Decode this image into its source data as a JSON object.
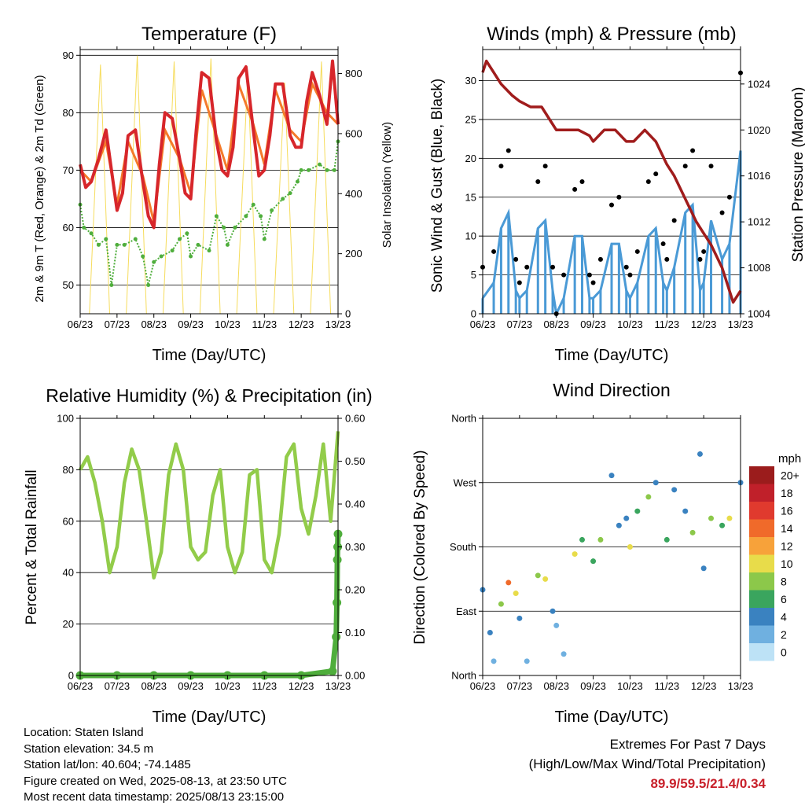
{
  "panels": {
    "temperature": {
      "title": "Temperature (F)",
      "xlabel": "Time (Day/UTC)",
      "ylabel_left": "2m & 9m T (Red, Orange) & 2m Td (Green)",
      "ylabel_right": "Solar Insolation (Yellow)"
    },
    "winds": {
      "title": "Winds (mph) & Pressure (mb)",
      "xlabel": "Time (Day/UTC)",
      "ylabel_left": "Sonic Wind & Gust (Blue, Black)",
      "ylabel_right": "Station Pressure (Maroon)"
    },
    "humidity": {
      "title": "Relative Humidity (%) & Precipitation (in)",
      "xlabel": "Time (Day/UTC)",
      "ylabel_left": "Percent & Total Rainfall"
    },
    "direction": {
      "title": "Wind Direction",
      "xlabel": "Time (Day/UTC)",
      "ylabel_left": "Direction (Colored By Speed)",
      "legend_title": "mph"
    }
  },
  "info": {
    "location": "Location: Staten Island",
    "elevation": "Station elevation: 34.5 m",
    "latlon": "Station lat/lon: 40.604; -74.1485",
    "created": "Figure created on Wed, 2025-08-13, at 23:50 UTC",
    "recent": "Most recent data timestamp: 2025/08/13 23:15:00"
  },
  "extremes": {
    "title": "Extremes For Past 7 Days",
    "subtitle": "(High/Low/Max Wind/Total Precipitation)",
    "values": "89.9/59.5/21.4/0.34"
  },
  "colors": {
    "temp_2m": "#d7262b",
    "temp_9m": "#f47a2a",
    "dewpoint": "#4fae3c",
    "solar": "#f6dc5c",
    "wind": "#4a9ad6",
    "gust": "#000000",
    "pressure": "#a01c1c",
    "rh": "#92cc4a",
    "precip": "#4fae3c"
  },
  "chart_data": [
    {
      "type": "line",
      "title": "Temperature (F)",
      "xlabel": "Time (Day/UTC)",
      "ylabel": "2m & 9m T (Red, Orange) & 2m Td (Green)",
      "y2label": "Solar Insolation (Yellow)",
      "x_ticks": [
        "06/23",
        "07/23",
        "08/23",
        "09/23",
        "10/23",
        "11/23",
        "12/23",
        "13/23"
      ],
      "xlim": [
        "2025-08-06 23:00",
        "2025-08-13 23:00"
      ],
      "ylim": [
        45,
        91
      ],
      "yticks": [
        50,
        60,
        70,
        80,
        90
      ],
      "y2lim": [
        0,
        880
      ],
      "y2ticks": [
        0,
        200,
        400,
        600,
        800
      ],
      "grid": true,
      "series": [
        {
          "name": "2m T",
          "axis": "left",
          "color": "#d7262b",
          "x": [
            0,
            0.15,
            0.3,
            0.5,
            0.7,
            0.85,
            1,
            1.15,
            1.3,
            1.5,
            1.7,
            1.85,
            2,
            2.15,
            2.3,
            2.5,
            2.7,
            2.85,
            3,
            3.15,
            3.3,
            3.5,
            3.7,
            3.85,
            4,
            4.15,
            4.3,
            4.5,
            4.7,
            4.85,
            5,
            5.15,
            5.3,
            5.5,
            5.7,
            5.85,
            6,
            6.15,
            6.3,
            6.5,
            6.7,
            6.85,
            7
          ],
          "values": [
            71,
            67,
            68,
            72,
            77,
            70,
            63,
            66,
            76,
            77,
            68,
            62,
            60,
            71,
            80,
            79,
            72,
            66,
            65,
            77,
            87,
            86,
            75,
            70,
            69,
            74,
            86,
            88,
            77,
            69,
            70,
            76,
            85,
            85,
            76,
            74,
            74,
            82,
            87,
            83,
            78,
            89,
            78
          ]
        },
        {
          "name": "9m T",
          "axis": "left",
          "color": "#f47a2a",
          "x": [
            0,
            0.3,
            0.7,
            1,
            1.3,
            1.7,
            2,
            2.3,
            2.7,
            3,
            3.3,
            3.7,
            4,
            4.3,
            4.7,
            5,
            5.3,
            5.7,
            6,
            6.3,
            6.7,
            7
          ],
          "values": [
            70,
            68,
            75,
            64,
            75,
            69,
            61,
            77,
            72,
            66,
            84,
            76,
            70,
            85,
            78,
            71,
            84,
            77,
            75,
            85,
            80,
            78
          ]
        },
        {
          "name": "2m Td",
          "axis": "left",
          "color": "#4fae3c",
          "x": [
            0,
            0.1,
            0.3,
            0.5,
            0.7,
            0.85,
            1,
            1.2,
            1.5,
            1.7,
            1.85,
            2,
            2.2,
            2.5,
            2.7,
            2.9,
            3,
            3.2,
            3.5,
            3.7,
            3.9,
            4,
            4.2,
            4.5,
            4.7,
            4.9,
            5,
            5.2,
            5.5,
            5.7,
            5.9,
            6,
            6.2,
            6.5,
            6.7,
            6.9,
            7
          ],
          "values": [
            64,
            60,
            59,
            57,
            58,
            50,
            57,
            57,
            58,
            55,
            50,
            54,
            55,
            56,
            58,
            59,
            55,
            57,
            56,
            62,
            60,
            57,
            60,
            62,
            64,
            62,
            58,
            63,
            65,
            66,
            68,
            70,
            70,
            71,
            70,
            70,
            75
          ]
        },
        {
          "name": "Solar Insolation",
          "axis": "right",
          "color": "#f6dc5c",
          "x": [
            0.1,
            0.25,
            0.55,
            0.8,
            1.1,
            1.25,
            1.55,
            1.8,
            2.1,
            2.25,
            2.55,
            2.8,
            3.1,
            3.25,
            3.55,
            3.8,
            4.1,
            4.25,
            4.55,
            4.8,
            5.1,
            5.25,
            5.55,
            5.8,
            6.1,
            6.25,
            6.55,
            6.8
          ],
          "values": [
            0,
            0,
            830,
            0,
            0,
            0,
            860,
            0,
            0,
            0,
            840,
            0,
            0,
            0,
            850,
            0,
            0,
            0,
            800,
            0,
            0,
            0,
            770,
            0,
            0,
            0,
            840,
            0
          ]
        }
      ]
    },
    {
      "type": "scatter",
      "title": "Winds (mph) & Pressure (mb)",
      "xlabel": "Time (Day/UTC)",
      "ylabel": "Sonic Wind & Gust (Blue, Black)",
      "y2label": "Station Pressure (Maroon)",
      "x_ticks": [
        "06/23",
        "07/23",
        "08/23",
        "09/23",
        "10/23",
        "11/23",
        "12/23",
        "13/23"
      ],
      "ylim": [
        0,
        34
      ],
      "yticks": [
        0,
        5,
        10,
        15,
        20,
        25,
        30
      ],
      "y2lim": [
        1004,
        1027
      ],
      "y2ticks": [
        1004,
        1008,
        1012,
        1016,
        1020,
        1024
      ],
      "grid": true,
      "series": [
        {
          "name": "Gust",
          "color": "#000000",
          "x": [
            0,
            0.3,
            0.5,
            0.7,
            0.9,
            1,
            1.2,
            1.5,
            1.7,
            1.9,
            2,
            2.2,
            2.5,
            2.7,
            2.9,
            3,
            3.2,
            3.5,
            3.7,
            3.9,
            4,
            4.2,
            4.5,
            4.7,
            4.9,
            5,
            5.2,
            5.5,
            5.7,
            5.9,
            6,
            6.2,
            6.5,
            6.7,
            7
          ],
          "values": [
            6,
            8,
            19,
            21,
            7,
            4,
            6,
            17,
            19,
            6,
            0,
            5,
            16,
            17,
            5,
            4,
            7,
            14,
            15,
            6,
            5,
            8,
            17,
            18,
            9,
            7,
            12,
            19,
            21,
            7,
            8,
            19,
            13,
            15,
            31
          ]
        },
        {
          "name": "Wind",
          "color": "#4a9ad6",
          "x": [
            0,
            0.3,
            0.5,
            0.7,
            0.9,
            1,
            1.2,
            1.5,
            1.7,
            1.9,
            2,
            2.2,
            2.5,
            2.7,
            2.9,
            3,
            3.2,
            3.5,
            3.7,
            3.9,
            4,
            4.2,
            4.5,
            4.7,
            4.9,
            5,
            5.2,
            5.5,
            5.7,
            5.9,
            6,
            6.2,
            6.5,
            6.7,
            7
          ],
          "values": [
            2,
            4,
            11,
            13,
            3,
            2,
            3,
            11,
            12,
            3,
            0,
            2,
            10,
            10,
            2,
            2,
            3,
            9,
            9,
            3,
            2,
            4,
            10,
            11,
            4,
            3,
            6,
            13,
            14,
            3,
            4,
            12,
            7,
            9,
            21
          ]
        },
        {
          "name": "Pressure",
          "color": "#a01c1c",
          "axis": "right",
          "x": [
            0,
            0.1,
            0.3,
            0.5,
            0.8,
            1,
            1.3,
            1.6,
            1.9,
            2,
            2.3,
            2.6,
            2.9,
            3,
            3.3,
            3.6,
            3.9,
            4.1,
            4.4,
            4.7,
            5,
            5.2,
            5.5,
            5.8,
            6,
            6.2,
            6.5,
            6.8,
            7
          ],
          "values": [
            1025,
            1026,
            1025,
            1024,
            1023,
            1022.5,
            1022,
            1022,
            1020.5,
            1020,
            1020,
            1020,
            1019.5,
            1019,
            1020,
            1020,
            1019,
            1019,
            1020,
            1019,
            1017,
            1016,
            1014,
            1012,
            1011,
            1010,
            1008,
            1005,
            1006
          ]
        }
      ]
    },
    {
      "type": "line",
      "title": "Relative Humidity (%) & Precipitation (in)",
      "xlabel": "Time (Day/UTC)",
      "ylabel": "Percent & Total Rainfall",
      "x_ticks": [
        "06/23",
        "07/23",
        "08/23",
        "09/23",
        "10/23",
        "11/23",
        "12/23",
        "13/23"
      ],
      "ylim": [
        0,
        100
      ],
      "yticks": [
        0,
        20,
        40,
        60,
        80,
        100
      ],
      "y2lim": [
        0,
        0.6
      ],
      "y2ticks": [
        "0.00",
        "0.10",
        "0.20",
        "0.30",
        "0.40",
        "0.50",
        "0.60"
      ],
      "grid": true,
      "series": [
        {
          "name": "RH",
          "color": "#92cc4a",
          "x": [
            0,
            0.2,
            0.4,
            0.6,
            0.8,
            1,
            1.2,
            1.4,
            1.6,
            1.8,
            2,
            2.2,
            2.4,
            2.6,
            2.8,
            3,
            3.2,
            3.4,
            3.6,
            3.8,
            4,
            4.2,
            4.4,
            4.6,
            4.8,
            5,
            5.2,
            5.4,
            5.6,
            5.8,
            6,
            6.2,
            6.4,
            6.6,
            6.8,
            7
          ],
          "values": [
            80,
            85,
            75,
            60,
            40,
            50,
            75,
            88,
            80,
            60,
            38,
            48,
            78,
            90,
            80,
            50,
            45,
            48,
            70,
            80,
            50,
            40,
            48,
            78,
            80,
            45,
            40,
            55,
            85,
            90,
            65,
            55,
            70,
            90,
            60,
            95
          ]
        },
        {
          "name": "Precipitation",
          "color": "#4fae3c",
          "axis": "right",
          "x": [
            0,
            1,
            2,
            3,
            4,
            5,
            6,
            6.85,
            6.95,
            6.97,
            6.98,
            6.99,
            7
          ],
          "values": [
            0,
            0,
            0,
            0,
            0,
            0,
            0,
            0.01,
            0.09,
            0.17,
            0.27,
            0.3,
            0.33
          ]
        }
      ]
    },
    {
      "type": "scatter",
      "title": "Wind Direction",
      "xlabel": "Time (Day/UTC)",
      "ylabel": "Direction (Colored By Speed)",
      "x_ticks": [
        "06/23",
        "07/23",
        "08/23",
        "09/23",
        "10/23",
        "11/23",
        "12/23",
        "13/23"
      ],
      "y_ticks": [
        "North",
        "East",
        "South",
        "West",
        "North"
      ],
      "ylim": [
        0,
        360
      ],
      "legend": {
        "title": "mph",
        "labels": [
          "20+",
          "18",
          "16",
          "14",
          "12",
          "10",
          "8",
          "6",
          "4",
          "2",
          "0"
        ],
        "colors": [
          "#9b1c1c",
          "#c0202a",
          "#e03a2e",
          "#f06a2a",
          "#f7a23a",
          "#e8dc4a",
          "#8cc84a",
          "#3aa55e",
          "#3a82c0",
          "#6fb0e0",
          "#bde2f6"
        ]
      },
      "series": [
        {
          "name": "Direction",
          "x": [
            0,
            0.2,
            0.3,
            0.5,
            0.7,
            0.9,
            1,
            1.2,
            1.5,
            1.7,
            1.9,
            2,
            2.2,
            2.5,
            2.7,
            3,
            3.2,
            3.5,
            3.7,
            3.9,
            4,
            4.2,
            4.5,
            4.7,
            5,
            5.2,
            5.5,
            5.7,
            5.9,
            6,
            6.2,
            6.5,
            6.7,
            7
          ],
          "values": [
            120,
            60,
            20,
            100,
            130,
            115,
            80,
            20,
            140,
            135,
            90,
            70,
            30,
            170,
            190,
            160,
            190,
            280,
            210,
            220,
            180,
            230,
            250,
            270,
            190,
            260,
            230,
            200,
            310,
            150,
            220,
            210,
            220,
            270
          ],
          "speeds": [
            3,
            4,
            2,
            8,
            14,
            10,
            3,
            2,
            8,
            10,
            4,
            2,
            2,
            10,
            6,
            6,
            8,
            4,
            4,
            4,
            10,
            6,
            8,
            4,
            6,
            4,
            4,
            8,
            4,
            3,
            8,
            6,
            10,
            4
          ]
        }
      ]
    }
  ]
}
